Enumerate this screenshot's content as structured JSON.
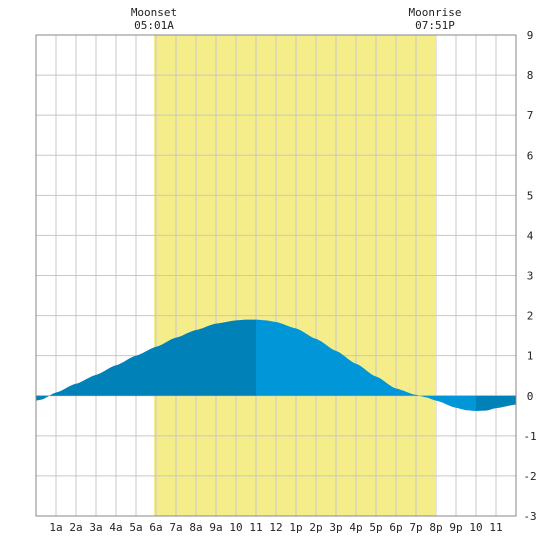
{
  "chart_data": {
    "type": "area",
    "title": "",
    "xlabel": "",
    "ylabel": "",
    "xlim": [
      0,
      24
    ],
    "ylim": [
      -3,
      9
    ],
    "grid": true,
    "x_ticks": [
      {
        "x": 1,
        "label": "1a"
      },
      {
        "x": 2,
        "label": "2a"
      },
      {
        "x": 3,
        "label": "3a"
      },
      {
        "x": 4,
        "label": "4a"
      },
      {
        "x": 5,
        "label": "5a"
      },
      {
        "x": 6,
        "label": "6a"
      },
      {
        "x": 7,
        "label": "7a"
      },
      {
        "x": 8,
        "label": "8a"
      },
      {
        "x": 9,
        "label": "9a"
      },
      {
        "x": 10,
        "label": "10"
      },
      {
        "x": 11,
        "label": "11"
      },
      {
        "x": 12,
        "label": "12"
      },
      {
        "x": 13,
        "label": "1p"
      },
      {
        "x": 14,
        "label": "2p"
      },
      {
        "x": 15,
        "label": "3p"
      },
      {
        "x": 16,
        "label": "4p"
      },
      {
        "x": 17,
        "label": "5p"
      },
      {
        "x": 18,
        "label": "6p"
      },
      {
        "x": 19,
        "label": "7p"
      },
      {
        "x": 20,
        "label": "8p"
      },
      {
        "x": 21,
        "label": "9p"
      },
      {
        "x": 22,
        "label": "10"
      },
      {
        "x": 23,
        "label": "11"
      }
    ],
    "y_ticks": [
      "9",
      "8",
      "7",
      "6",
      "5",
      "4",
      "3",
      "2",
      "1",
      "0",
      "-1",
      "-2",
      "-3"
    ],
    "moon_events": [
      {
        "label": "Moonset",
        "time": "05:01A",
        "x": 5.9
      },
      {
        "label": "Moonrise",
        "time": "07:51P",
        "x": 19.95
      }
    ],
    "series": [
      {
        "x": [
          0,
          0.25,
          1,
          2,
          3,
          4,
          5,
          6,
          7,
          8,
          9,
          10,
          10.5,
          11,
          11.5,
          12,
          13,
          14,
          15,
          16,
          17,
          18,
          19,
          19.5,
          20,
          21,
          21.5,
          22,
          22.5,
          23,
          24
        ],
        "y": [
          -0.12,
          -0.1,
          0.08,
          0.3,
          0.52,
          0.76,
          1.0,
          1.22,
          1.45,
          1.64,
          1.8,
          1.88,
          1.9,
          1.9,
          1.88,
          1.84,
          1.68,
          1.42,
          1.12,
          0.8,
          0.48,
          0.18,
          0.02,
          -0.04,
          -0.12,
          -0.3,
          -0.36,
          -0.38,
          -0.37,
          -0.31,
          -0.22
        ]
      }
    ],
    "colors": {
      "moon_band": "#f5ed8a",
      "grid": "#c8c8c8",
      "axis": "#888888",
      "fill_dark": "#0081b8",
      "fill_light": "#0096d8"
    }
  }
}
